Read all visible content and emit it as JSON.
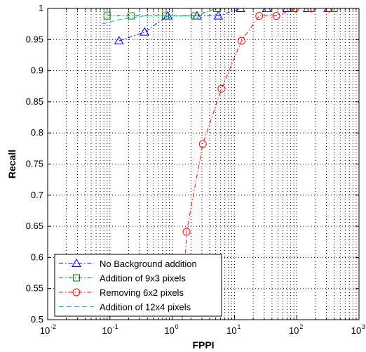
{
  "chart_data": {
    "type": "line",
    "title": "",
    "xlabel": "FPPI",
    "ylabel": "Recall",
    "xscale": "log",
    "xlim": [
      0.01,
      1000
    ],
    "ylim": [
      0.5,
      1.0
    ],
    "x_tick_labels": [
      {
        "base": "10",
        "exp": "-2",
        "value": 0.01
      },
      {
        "base": "10",
        "exp": "-1",
        "value": 0.1
      },
      {
        "base": "10",
        "exp": "0",
        "value": 1
      },
      {
        "base": "10",
        "exp": "1",
        "value": 10
      },
      {
        "base": "10",
        "exp": "2",
        "value": 100
      },
      {
        "base": "10",
        "exp": "3",
        "value": 1000
      }
    ],
    "y_tick_labels": [
      {
        "text": "0.5",
        "value": 0.5
      },
      {
        "text": "0.55",
        "value": 0.55
      },
      {
        "text": "0.6",
        "value": 0.6
      },
      {
        "text": "0.65",
        "value": 0.65
      },
      {
        "text": "0.7",
        "value": 0.7
      },
      {
        "text": "0.75",
        "value": 0.75
      },
      {
        "text": "0.8",
        "value": 0.8
      },
      {
        "text": "0.85",
        "value": 0.85
      },
      {
        "text": "0.9",
        "value": 0.9
      },
      {
        "text": "0.95",
        "value": 0.95
      },
      {
        "text": "1",
        "value": 1.0
      }
    ],
    "grid": true,
    "legend_position": "bottom-left",
    "series": [
      {
        "name": "No Background addition",
        "color": "#0000ff",
        "line_style": "dashdot",
        "marker": "triangle",
        "x": [
          0.14,
          0.36,
          0.85,
          2.5,
          5.5,
          12.5,
          33,
          70,
          150,
          320
        ],
        "y": [
          0.948,
          0.962,
          0.988,
          0.988,
          0.988,
          1.0,
          1.0,
          1.0,
          1.0,
          1.0
        ]
      },
      {
        "name": "Addition of 9x3 pixels",
        "color": "#008000",
        "line_style": "dashdot",
        "marker": "square",
        "x": [
          0.09,
          0.22,
          0.78,
          2.3,
          5.2,
          35,
          90,
          170,
          400
        ],
        "y": [
          0.988,
          0.988,
          0.988,
          0.988,
          1.0,
          1.0,
          1.0,
          1.0,
          1.0
        ]
      },
      {
        "name": "Removing 6x2 pixels",
        "color": "#ff0000",
        "line_style": "dashdot",
        "marker": "circle",
        "x": [
          1.45,
          1.7,
          3.1,
          6.2,
          13,
          25,
          47,
          95,
          170,
          330
        ],
        "y": [
          0.5,
          0.641,
          0.782,
          0.871,
          0.948,
          0.988,
          0.988,
          1.0,
          1.0,
          1.0
        ]
      },
      {
        "name": "Addition of 12x4 pixels",
        "color": "#00bfbf",
        "line_style": "dashed",
        "marker": "none",
        "x": [
          0.075,
          0.14,
          0.36,
          1.0,
          1.8,
          2.5
        ],
        "y": [
          0.975,
          0.982,
          0.988,
          0.988,
          0.988,
          0.988
        ]
      }
    ]
  }
}
